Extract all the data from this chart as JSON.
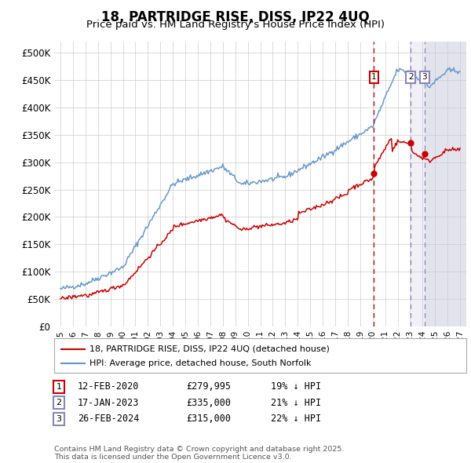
{
  "title": "18, PARTRIDGE RISE, DISS, IP22 4UQ",
  "subtitle": "Price paid vs. HM Land Registry's House Price Index (HPI)",
  "legend_line1": "18, PARTRIDGE RISE, DISS, IP22 4UQ (detached house)",
  "legend_line2": "HPI: Average price, detached house, South Norfolk",
  "footnote": "Contains HM Land Registry data © Crown copyright and database right 2025.\nThis data is licensed under the Open Government Licence v3.0.",
  "table": [
    {
      "num": "1",
      "date": "12-FEB-2020",
      "price": "£279,995",
      "hpi": "19% ↓ HPI"
    },
    {
      "num": "2",
      "date": "17-JAN-2023",
      "price": "£335,000",
      "hpi": "21% ↓ HPI"
    },
    {
      "num": "3",
      "date": "26-FEB-2024",
      "price": "£315,000",
      "hpi": "22% ↓ HPI"
    }
  ],
  "sale_dates_num": [
    2020.11,
    2023.05,
    2024.15
  ],
  "sale_prices": [
    279995,
    335000,
    315000
  ],
  "vline_color_1": "#cc0000",
  "vline_color_23": "#8888bb",
  "hatch_color": "#8888bb",
  "red_line_color": "#cc0000",
  "blue_line_color": "#6699cc",
  "background_color": "#ffffff",
  "grid_color": "#cccccc",
  "ylim": [
    0,
    520000
  ],
  "yticks": [
    0,
    50000,
    100000,
    150000,
    200000,
    250000,
    300000,
    350000,
    400000,
    450000,
    500000
  ],
  "xlim_start": 1994.5,
  "xlim_end": 2027.5
}
